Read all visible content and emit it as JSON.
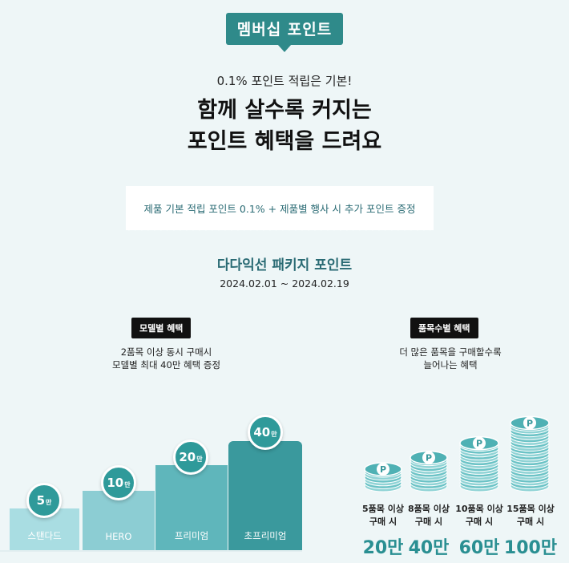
{
  "badge": "멤버십 포인트",
  "subtitle": "0.1% 포인트 적립은 기본!",
  "headline_line1": "함께 살수록 커지는",
  "headline_line2": "포인트 혜택을 드려요",
  "info_box": "제품 기본 적립 포인트 0.1% + 제품별 행사 시 추가 포인트 증정",
  "section_title": "다다익선 패키지 포인트",
  "section_date": "2024.02.01 ~ 2024.02.19",
  "left": {
    "pill": "모델별 혜택",
    "desc_line1": "2품목 이상 동시 구매시",
    "desc_line2": "모델별 최대 40만 혜택 증정",
    "unit": "만",
    "bars": [
      {
        "label": "스탠다드",
        "value": "5",
        "color": "#a9dde2"
      },
      {
        "label": "HERO",
        "value": "10",
        "color": "#8ccdd3"
      },
      {
        "label": "프리미엄",
        "value": "20",
        "color": "#5fb6bb"
      },
      {
        "label": "초프리미엄",
        "value": "40",
        "color": "#3a999d"
      }
    ]
  },
  "right": {
    "pill": "품목수별 혜택",
    "desc_line1": "더 많은 품목을 구매할수록",
    "desc_line2": "늘어나는 혜택",
    "coin_letter": "P",
    "stacks": [
      {
        "line1": "5품목 이상",
        "line2": "구매 시",
        "amount": "20만"
      },
      {
        "line1": "8품목 이상",
        "line2": "구매 시",
        "amount": "40만"
      },
      {
        "line1": "10품목 이상",
        "line2": "구매 시",
        "amount": "60만"
      },
      {
        "line1": "15품목 이상",
        "line2": "구매 시",
        "amount": "100만"
      }
    ]
  }
}
